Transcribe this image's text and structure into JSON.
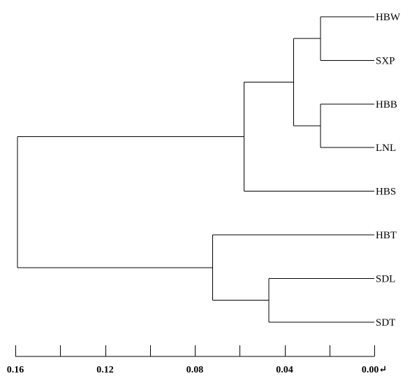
{
  "dendrogram": {
    "leaves": [
      "HBW",
      "SXP",
      "HBB",
      "LNL",
      "HBS",
      "HBT",
      "SDL",
      "SDT"
    ],
    "merges": [
      {
        "children": [
          "HBW",
          "SXP"
        ],
        "height": 0.024
      },
      {
        "children": [
          "HBB",
          "LNL"
        ],
        "height": 0.024
      },
      {
        "children": [
          "HBW+SXP",
          "HBB+LNL"
        ],
        "height": 0.036
      },
      {
        "children": [
          "HBW+SXP+HBB+LNL",
          "HBS"
        ],
        "height": 0.058
      },
      {
        "children": [
          "SDL",
          "SDT"
        ],
        "height": 0.047
      },
      {
        "children": [
          "HBT",
          "SDL+SDT"
        ],
        "height": 0.072
      },
      {
        "children": [
          "A",
          "B"
        ],
        "height": 0.159
      }
    ]
  },
  "axis": {
    "range": [
      0.16,
      0.0
    ],
    "minor_tick_step": 0.02,
    "tick_labels": [
      {
        "value": 0.16,
        "label": "0.16"
      },
      {
        "value": 0.12,
        "label": "0.12"
      },
      {
        "value": 0.08,
        "label": "0.08"
      },
      {
        "value": 0.04,
        "label": "0.04"
      },
      {
        "value": 0.0,
        "label": "0.00↵"
      }
    ]
  }
}
